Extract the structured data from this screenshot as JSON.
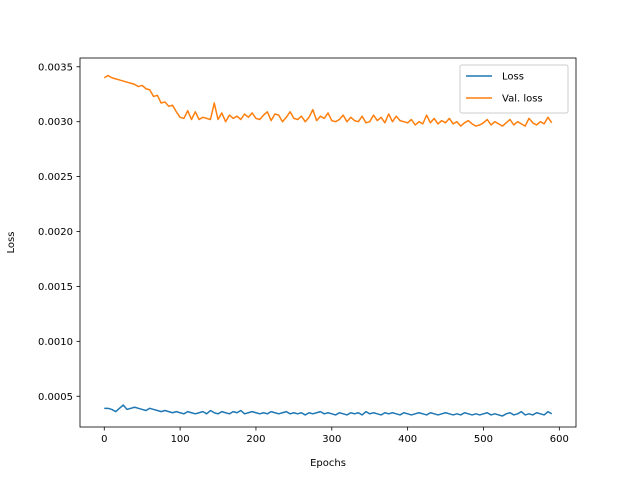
{
  "chart_data": {
    "type": "line",
    "title": "",
    "xlabel": "Epochs",
    "ylabel": "Loss",
    "xlim": [
      -32,
      622
    ],
    "ylim": [
      0.00022,
      0.00358
    ],
    "xticks": [
      0,
      100,
      200,
      300,
      400,
      500,
      600
    ],
    "xtick_labels": [
      "0",
      "100",
      "200",
      "300",
      "400",
      "500",
      "600"
    ],
    "yticks": [
      0.0005,
      0.001,
      0.0015,
      0.002,
      0.0025,
      0.003,
      0.0035
    ],
    "ytick_labels": [
      "0.0005",
      "0.0010",
      "0.0015",
      "0.0020",
      "0.0025",
      "0.0030",
      "0.0035"
    ],
    "grid": false,
    "legend_position": "top-right",
    "series": [
      {
        "name": "Loss",
        "color": "#1f77b4",
        "x": [
          0,
          5,
          10,
          15,
          20,
          25,
          30,
          35,
          40,
          45,
          50,
          55,
          60,
          65,
          70,
          75,
          80,
          85,
          90,
          95,
          100,
          105,
          110,
          115,
          120,
          125,
          130,
          135,
          140,
          145,
          150,
          155,
          160,
          165,
          170,
          175,
          180,
          185,
          190,
          195,
          200,
          205,
          210,
          215,
          220,
          225,
          230,
          235,
          240,
          245,
          250,
          255,
          260,
          265,
          270,
          275,
          280,
          285,
          290,
          295,
          300,
          305,
          310,
          315,
          320,
          325,
          330,
          335,
          340,
          345,
          350,
          355,
          360,
          365,
          370,
          375,
          380,
          385,
          390,
          395,
          400,
          405,
          410,
          415,
          420,
          425,
          430,
          435,
          440,
          445,
          450,
          455,
          460,
          465,
          470,
          475,
          480,
          485,
          490,
          495,
          500,
          505,
          510,
          515,
          520,
          525,
          530,
          535,
          540,
          545,
          550,
          555,
          560,
          565,
          570,
          575,
          580,
          585,
          590
        ],
        "y": [
          0.00039,
          0.00039,
          0.00038,
          0.00036,
          0.00039,
          0.00042,
          0.00038,
          0.00039,
          0.0004,
          0.00039,
          0.00038,
          0.00037,
          0.00039,
          0.00038,
          0.00037,
          0.00036,
          0.00037,
          0.00036,
          0.00035,
          0.00036,
          0.00035,
          0.00034,
          0.00036,
          0.00035,
          0.00034,
          0.00035,
          0.00036,
          0.00034,
          0.00037,
          0.00035,
          0.00034,
          0.00036,
          0.00035,
          0.00034,
          0.00036,
          0.00035,
          0.00037,
          0.00034,
          0.00035,
          0.00036,
          0.00035,
          0.00034,
          0.00035,
          0.00034,
          0.00036,
          0.00035,
          0.00034,
          0.00035,
          0.00036,
          0.00034,
          0.00035,
          0.00034,
          0.00035,
          0.00033,
          0.00035,
          0.00034,
          0.00035,
          0.00036,
          0.00034,
          0.00035,
          0.00034,
          0.00033,
          0.00035,
          0.00034,
          0.00033,
          0.00035,
          0.00034,
          0.00035,
          0.00033,
          0.00036,
          0.00034,
          0.00035,
          0.00034,
          0.00033,
          0.00035,
          0.00034,
          0.00035,
          0.00034,
          0.00033,
          0.00035,
          0.00034,
          0.00033,
          0.00034,
          0.00035,
          0.00034,
          0.00033,
          0.00035,
          0.00034,
          0.00033,
          0.00034,
          0.00035,
          0.00034,
          0.00033,
          0.00034,
          0.00033,
          0.00035,
          0.00034,
          0.00033,
          0.00034,
          0.00033,
          0.00034,
          0.00035,
          0.00033,
          0.00034,
          0.00033,
          0.00032,
          0.00034,
          0.00035,
          0.00033,
          0.00034,
          0.00036,
          0.00033,
          0.00034,
          0.00033,
          0.00035,
          0.00034,
          0.00033,
          0.00036,
          0.00034
        ]
      },
      {
        "name": "Val. loss",
        "color": "#ff7f0e",
        "x": [
          0,
          5,
          10,
          15,
          20,
          25,
          30,
          35,
          40,
          45,
          50,
          55,
          60,
          65,
          70,
          75,
          80,
          85,
          90,
          95,
          100,
          105,
          110,
          115,
          120,
          125,
          130,
          135,
          140,
          145,
          150,
          155,
          160,
          165,
          170,
          175,
          180,
          185,
          190,
          195,
          200,
          205,
          210,
          215,
          220,
          225,
          230,
          235,
          240,
          245,
          250,
          255,
          260,
          265,
          270,
          275,
          280,
          285,
          290,
          295,
          300,
          305,
          310,
          315,
          320,
          325,
          330,
          335,
          340,
          345,
          350,
          355,
          360,
          365,
          370,
          375,
          380,
          385,
          390,
          395,
          400,
          405,
          410,
          415,
          420,
          425,
          430,
          435,
          440,
          445,
          450,
          455,
          460,
          465,
          470,
          475,
          480,
          485,
          490,
          495,
          500,
          505,
          510,
          515,
          520,
          525,
          530,
          535,
          540,
          545,
          550,
          555,
          560,
          565,
          570,
          575,
          580,
          585,
          590
        ],
        "y": [
          0.0034,
          0.00342,
          0.0034,
          0.00339,
          0.00338,
          0.00337,
          0.00336,
          0.00335,
          0.00334,
          0.00332,
          0.00333,
          0.0033,
          0.00329,
          0.00323,
          0.00324,
          0.00317,
          0.00318,
          0.00314,
          0.00315,
          0.00309,
          0.00304,
          0.00303,
          0.0031,
          0.00302,
          0.00309,
          0.00302,
          0.00304,
          0.00303,
          0.00302,
          0.00317,
          0.00302,
          0.00308,
          0.003,
          0.00306,
          0.00303,
          0.00305,
          0.00302,
          0.00307,
          0.00304,
          0.00308,
          0.00303,
          0.00302,
          0.00306,
          0.00309,
          0.00301,
          0.00307,
          0.00306,
          0.003,
          0.00304,
          0.00309,
          0.00303,
          0.00302,
          0.00305,
          0.003,
          0.00304,
          0.00311,
          0.00301,
          0.00305,
          0.00303,
          0.00308,
          0.00301,
          0.003,
          0.00302,
          0.00306,
          0.003,
          0.00304,
          0.00301,
          0.003,
          0.00305,
          0.00299,
          0.003,
          0.00306,
          0.00301,
          0.00304,
          0.00299,
          0.00307,
          0.003,
          0.00305,
          0.00301,
          0.003,
          0.00299,
          0.00302,
          0.00297,
          0.003,
          0.00298,
          0.00306,
          0.00299,
          0.00303,
          0.00298,
          0.00301,
          0.00299,
          0.00303,
          0.00298,
          0.003,
          0.00296,
          0.00299,
          0.00301,
          0.00298,
          0.00296,
          0.00297,
          0.00299,
          0.00302,
          0.00297,
          0.003,
          0.00298,
          0.00296,
          0.00299,
          0.00302,
          0.00297,
          0.003,
          0.00298,
          0.00296,
          0.00303,
          0.00299,
          0.00297,
          0.003,
          0.00298,
          0.00304,
          0.00299
        ]
      }
    ]
  }
}
